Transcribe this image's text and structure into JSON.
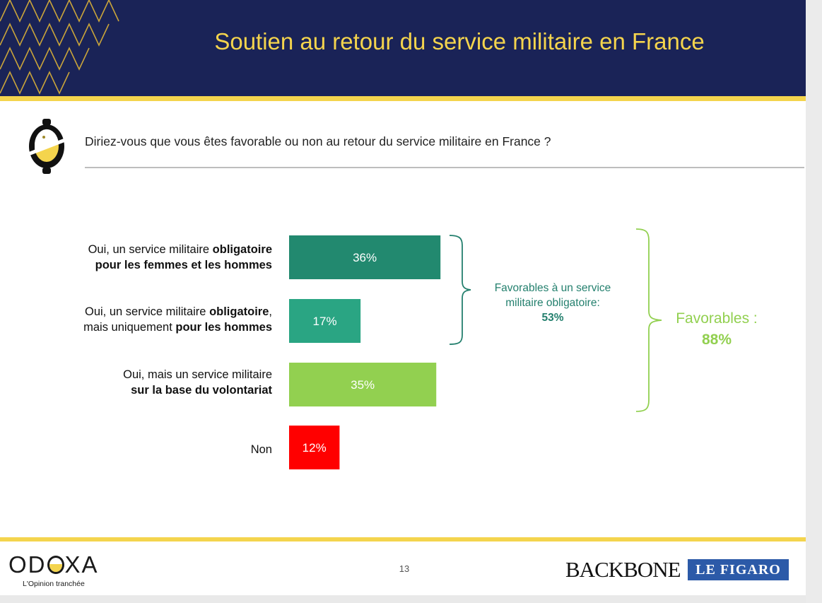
{
  "slide": {
    "title": "Soutien au retour du service militaire en France",
    "question": "Diriez-vous que vous êtes favorable ou non au retour du service militaire en France ?",
    "page_number": "13"
  },
  "labels": [
    {
      "plain1": "Oui, un service militaire ",
      "bold1": "obligatoire",
      "plain2": "",
      "bold2": "pour les femmes et les hommes"
    },
    {
      "plain1": "Oui, un service militaire ",
      "bold1": "obligatoire",
      "plain1b": ",",
      "plain2": "mais uniquement ",
      "bold2": "pour les hommes"
    },
    {
      "plain1": "Oui, mais un service militaire",
      "bold1": "",
      "plain2": "",
      "bold2": "sur la base du volontariat"
    },
    {
      "plain1": "Non"
    }
  ],
  "annotations": {
    "obligatoire_text": "Favorables à un service militaire obligatoire:",
    "obligatoire_value": "53%",
    "total_text": "Favorables :",
    "total_value": "88%"
  },
  "colors": {
    "navy": "#1a2357",
    "yellow": "#f4d44d",
    "bar_dark_teal": "#22896f",
    "bar_teal": "#2aa583",
    "bar_green": "#92d050",
    "bar_red": "#ff0000",
    "annot_teal": "#24806e",
    "annot_green": "#92d050"
  },
  "footer": {
    "brand_letters": [
      "OD",
      "XA"
    ],
    "tagline": "L'Opinion tranchée",
    "partner1": "BACKBONE",
    "partner2": "LE FIGARO"
  },
  "chart_data": {
    "type": "bar",
    "orientation": "horizontal",
    "categories": [
      "Oui, un service militaire obligatoire pour les femmes et les hommes",
      "Oui, un service militaire obligatoire, mais uniquement pour les hommes",
      "Oui, mais un service militaire sur la base du volontariat",
      "Non"
    ],
    "values": [
      36,
      17,
      35,
      12
    ],
    "value_labels": [
      "36%",
      "17%",
      "35%",
      "12%"
    ],
    "colors": [
      "#22896f",
      "#2aa583",
      "#92d050",
      "#ff0000"
    ],
    "unit": "%",
    "xlim": [
      0,
      100
    ],
    "grid": false,
    "title": "Soutien au retour du service militaire en France"
  }
}
